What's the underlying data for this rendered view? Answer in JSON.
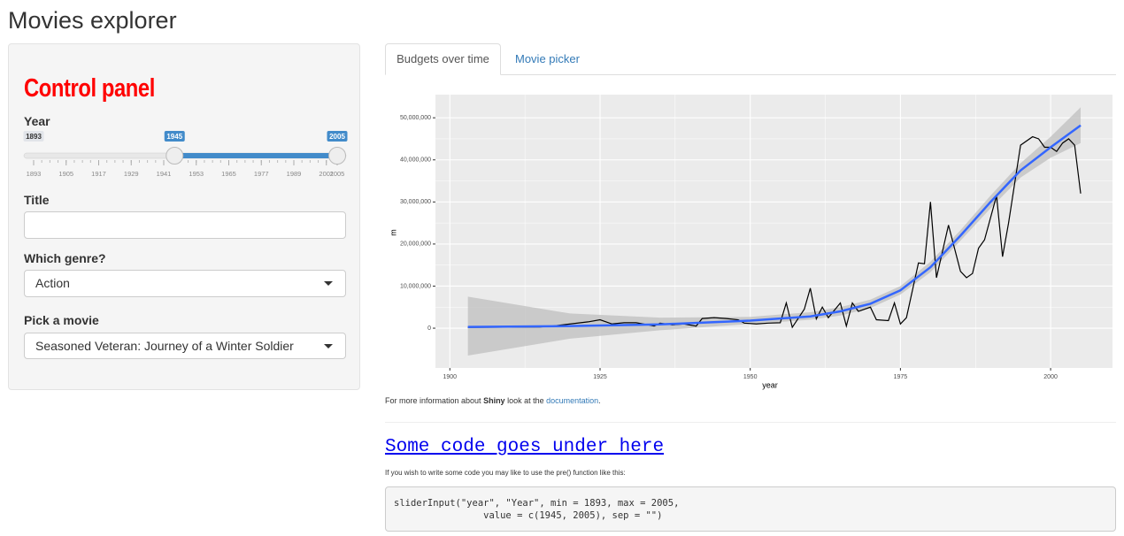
{
  "app_title": "Movies explorer",
  "sidebar": {
    "heading": "Control panel",
    "year_slider": {
      "label": "Year",
      "min": 1893,
      "max": 2005,
      "from": 1945,
      "to": 2005,
      "ticks": [
        1893,
        1905,
        1917,
        1929,
        1941,
        1953,
        1965,
        1977,
        1989,
        2001,
        2005
      ]
    },
    "title_input": {
      "label": "Title"
    },
    "genre_select": {
      "label": "Which genre?",
      "selected": "Action"
    },
    "movie_select": {
      "label": "Pick a movie",
      "selected": "Seasoned Veteran: Journey of a Winter Soldier"
    }
  },
  "tabs": [
    "Budgets over time",
    "Movie picker"
  ],
  "chart_data": {
    "type": "line",
    "x_label": "year",
    "y_label": "m",
    "xlim": [
      1897.6,
      2010.3
    ],
    "ylim": [
      -9450000,
      55500000
    ],
    "xticks": [
      1900,
      1925,
      1950,
      1975,
      2000
    ],
    "yticks": [
      0,
      {
        "value": 10000000,
        "label": "10,000,000"
      },
      {
        "value": 20000000,
        "label": "20,000,000"
      },
      {
        "value": 30000000,
        "label": "30,000,000"
      },
      {
        "value": 40000000,
        "label": "40,000,000"
      },
      {
        "value": 50000000,
        "label": "50,000,000"
      }
    ],
    "grid": true,
    "series": [
      {
        "color": "#000000",
        "x": [
          1903,
          1915,
          1917,
          1923,
          1925,
          1927,
          1929,
          1931,
          1933,
          1934,
          1935,
          1937,
          1939,
          1941,
          1942,
          1944,
          1946,
          1948,
          1949,
          1951,
          1953,
          1955,
          1956,
          1957,
          1959,
          1960,
          1961,
          1962,
          1963,
          1965,
          1966,
          1967,
          1968,
          1970,
          1971,
          1973,
          1974,
          1975,
          1976,
          1978,
          1979,
          1980,
          1981,
          1983,
          1985,
          1986,
          1987,
          1988,
          1989,
          1991,
          1992,
          1993,
          1995,
          1997,
          1998,
          1999,
          2000,
          2001,
          2002,
          2003,
          2004,
          2005
        ],
        "values": [
          200000,
          300000,
          500000,
          1500000,
          2000000,
          1000000,
          1300000,
          1300000,
          800000,
          500000,
          1200000,
          800000,
          1000000,
          500000,
          2300000,
          2500000,
          2300000,
          2000000,
          1200000,
          1000000,
          1200000,
          1300000,
          6000000,
          200000,
          4500000,
          9500000,
          2200000,
          5000000,
          2500000,
          6000000,
          500000,
          6000000,
          4000000,
          5000000,
          2000000,
          1800000,
          6000000,
          1000000,
          2500000,
          15500000,
          15300000,
          30000000,
          12000000,
          24500000,
          13500000,
          12000000,
          13000000,
          19000000,
          21000000,
          31500000,
          17000000,
          25000000,
          43500000,
          45500000,
          45000000,
          43000000,
          43000000,
          42000000,
          44000000,
          45000000,
          43500000,
          32000000
        ]
      },
      {
        "color": "#3366ff",
        "band_color": "#c2c2c2",
        "x": [
          1903,
          1920,
          1935,
          1950,
          1960,
          1965,
          1970,
          1975,
          1980,
          1985,
          1990,
          1995,
          2000,
          2005
        ],
        "values": [
          300000,
          500000,
          900000,
          1800000,
          2800000,
          4000000,
          5800000,
          9000000,
          14500000,
          22000000,
          30000000,
          37500000,
          43000000,
          48200000
        ],
        "lower": [
          -6500000,
          -2500000,
          -500000,
          1000000,
          2000000,
          3000000,
          4800000,
          8000000,
          13300000,
          20800000,
          28500000,
          35800000,
          40500000,
          44000000
        ],
        "upper": [
          7500000,
          3500000,
          2500000,
          2700000,
          3800000,
          5000000,
          6800000,
          10000000,
          15800000,
          23300000,
          31500000,
          39200000,
          45500000,
          52500000
        ]
      }
    ]
  },
  "info_line": {
    "before": "For more information about ",
    "bold": "Shiny",
    "middle": " look at the ",
    "link": "documentation",
    "after": "."
  },
  "code_section": {
    "heading": "Some code goes under here",
    "intro": "If you wish to write some code you may like to use the pre() function like this:",
    "code": "sliderInput(\"year\", \"Year\", min = 1893, max = 2005,\n                value = c(1945, 2005), sep = \"\")"
  }
}
